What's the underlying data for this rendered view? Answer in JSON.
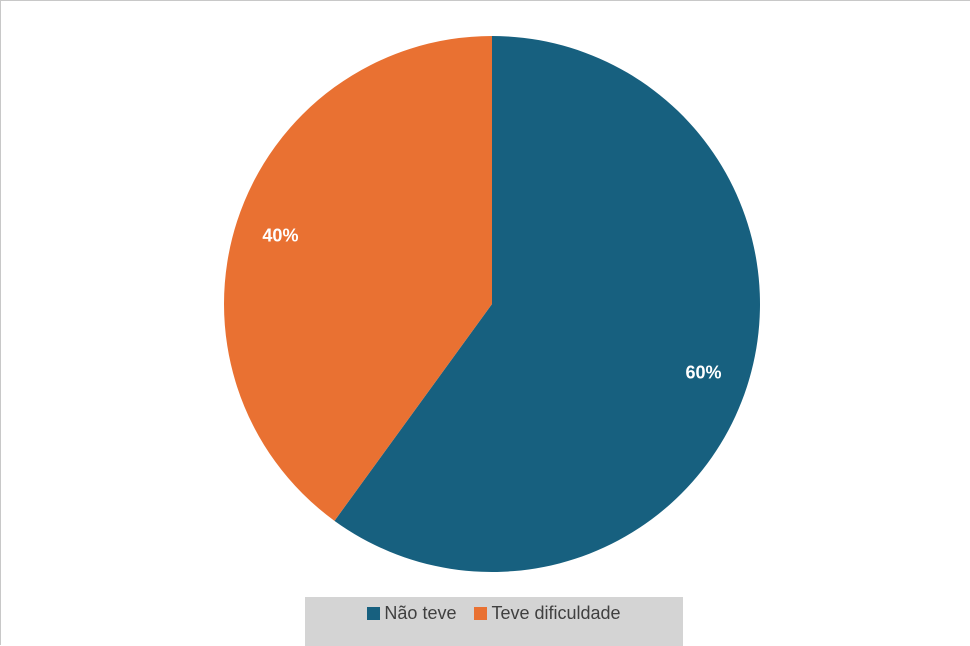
{
  "chart_data": {
    "type": "pie",
    "title": "",
    "categories": [
      "Não teve",
      "Teve dificuldade"
    ],
    "values": [
      60,
      40
    ],
    "data_labels": [
      "60%",
      "40%"
    ],
    "colors": [
      "#17607f",
      "#e97132"
    ],
    "start_angle_deg": 0,
    "direction": "clockwise",
    "legend": {
      "position": "bottom",
      "entries": [
        "Não teve",
        "Teve dificuldade"
      ]
    }
  }
}
